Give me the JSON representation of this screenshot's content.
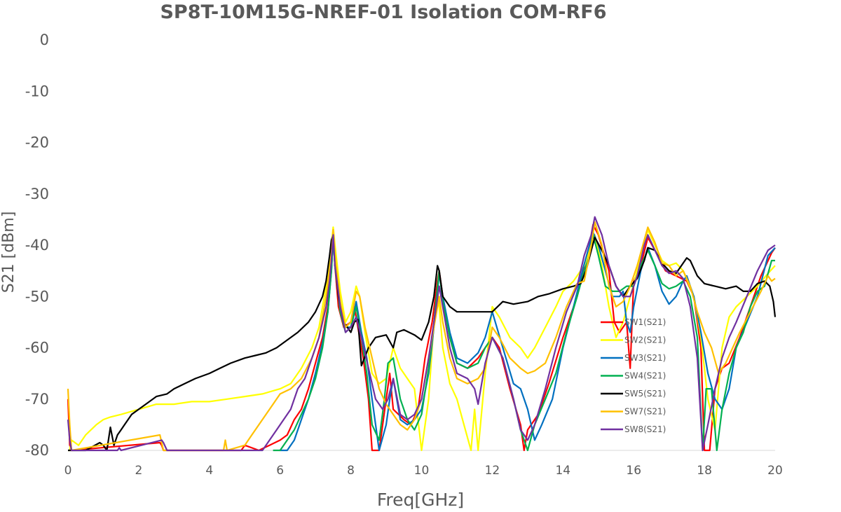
{
  "chart_data": {
    "type": "line",
    "title": "SP8T-10M15G-NREF-01  Isolation   COM-RF6",
    "xlabel": "Freq[GHz]",
    "ylabel": "S21  [dBm]",
    "xlim": [
      0,
      20
    ],
    "ylim": [
      -80,
      0
    ],
    "xticks": [
      0,
      2,
      4,
      6,
      8,
      10,
      12,
      14,
      16,
      18,
      20
    ],
    "yticks": [
      0,
      -10,
      -20,
      -30,
      -40,
      -50,
      -60,
      -70,
      -80
    ],
    "grid": false,
    "legend_position": "right-inside",
    "series": [
      {
        "name": "SW1(S21)",
        "color": "#ff0000",
        "x": [
          0,
          0.05,
          0.1,
          2.6,
          2.65,
          2.7,
          4.9,
          5.0,
          5.4,
          5.7,
          6.0,
          6.2,
          6.4,
          6.6,
          6.8,
          7.0,
          7.2,
          7.35,
          7.45,
          7.5,
          7.55,
          7.65,
          7.8,
          8.0,
          8.1,
          8.2,
          8.35,
          8.5,
          8.6,
          8.8,
          9.0,
          9.1,
          9.2,
          9.35,
          9.5,
          9.7,
          9.9,
          10.1,
          10.3,
          10.45,
          10.5,
          10.6,
          10.8,
          11.0,
          11.3,
          11.6,
          11.8,
          12.0,
          12.2,
          12.5,
          12.8,
          12.9,
          13.0,
          13.3,
          13.6,
          14.0,
          14.4,
          14.6,
          14.75,
          14.85,
          15.0,
          15.3,
          15.45,
          15.6,
          15.8,
          15.9,
          16.0,
          16.2,
          16.4,
          16.6,
          16.9,
          17.2,
          17.5,
          17.7,
          17.9,
          18.0,
          18.15,
          18.3,
          18.5,
          18.7,
          19.0,
          19.3,
          19.6,
          19.9,
          20.0
        ],
        "y": [
          -70,
          -79,
          -80,
          -78.5,
          -79,
          -80,
          -80,
          -79,
          -80,
          -79,
          -78,
          -77,
          -74,
          -72,
          -68,
          -63,
          -58,
          -52,
          -44,
          -38,
          -44,
          -52,
          -56,
          -55,
          -52,
          -56,
          -62,
          -70,
          -80,
          -80,
          -70,
          -65,
          -72,
          -73,
          -74,
          -75,
          -72,
          -62,
          -55,
          -47,
          -45,
          -50,
          -58,
          -63,
          -64,
          -62,
          -60,
          -58,
          -60,
          -68,
          -75,
          -80,
          -76,
          -73,
          -67,
          -58,
          -50,
          -44,
          -40,
          -36,
          -38,
          -45,
          -55,
          -57,
          -55,
          -64,
          -47,
          -44,
          -38.5,
          -41,
          -45,
          -46,
          -47,
          -50,
          -60,
          -80,
          -80,
          -68,
          -64,
          -63,
          -58,
          -52,
          -46,
          -41.5,
          -40.5
        ]
      },
      {
        "name": "SW2(S21)",
        "color": "#ffff00",
        "x": [
          0,
          0.05,
          0.1,
          0.3,
          0.5,
          0.8,
          1.0,
          1.2,
          1.5,
          2.0,
          2.5,
          3.0,
          3.5,
          4.0,
          4.5,
          5.0,
          5.5,
          6.0,
          6.3,
          6.6,
          6.9,
          7.1,
          7.3,
          7.45,
          7.5,
          7.55,
          7.7,
          7.85,
          8.0,
          8.15,
          8.25,
          8.4,
          8.6,
          8.8,
          9.0,
          9.2,
          9.4,
          9.6,
          9.8,
          10.0,
          10.2,
          10.35,
          10.45,
          10.5,
          10.6,
          10.8,
          11.0,
          11.2,
          11.4,
          11.5,
          11.6,
          11.8,
          12.0,
          12.2,
          12.5,
          12.8,
          13.0,
          13.2,
          13.5,
          13.8,
          14.0,
          14.3,
          14.6,
          14.8,
          14.9,
          15.1,
          15.3,
          15.5,
          15.7,
          15.9,
          16.1,
          16.3,
          16.4,
          16.6,
          16.8,
          17.0,
          17.2,
          17.4,
          17.7,
          17.9,
          18.1,
          18.3,
          18.5,
          18.7,
          18.9,
          19.2,
          19.5,
          19.8,
          20.0
        ],
        "y": [
          -80,
          -80,
          -78,
          -79,
          -77,
          -75,
          -74,
          -73.5,
          -73,
          -72,
          -71,
          -71,
          -70.5,
          -70.5,
          -70,
          -69.5,
          -69,
          -68,
          -67,
          -64,
          -60,
          -56,
          -48,
          -40,
          -36.5,
          -40,
          -49,
          -55,
          -53,
          -48,
          -50,
          -57,
          -65,
          -67,
          -66,
          -60,
          -64,
          -66,
          -68,
          -80,
          -70,
          -55,
          -50,
          -52,
          -60,
          -67,
          -70,
          -75,
          -80,
          -72,
          -80,
          -65,
          -52,
          -54,
          -58,
          -60,
          -62,
          -60,
          -56,
          -52,
          -49,
          -47,
          -44,
          -40,
          -38,
          -44,
          -52,
          -58,
          -55,
          -50,
          -45,
          -40,
          -37,
          -40,
          -43,
          -44,
          -43.5,
          -45,
          -50,
          -58,
          -70,
          -76,
          -60,
          -54,
          -52,
          -50,
          -48,
          -45.5,
          -44
        ]
      },
      {
        "name": "SW3(S21)",
        "color": "#0070c0",
        "x": [
          6.0,
          6.2,
          6.4,
          6.6,
          6.8,
          7.0,
          7.2,
          7.35,
          7.45,
          7.5,
          7.55,
          7.7,
          7.85,
          8.0,
          8.15,
          8.3,
          8.45,
          8.6,
          8.8,
          9.0,
          9.1,
          9.2,
          9.4,
          9.6,
          9.8,
          10.0,
          10.2,
          10.35,
          10.5,
          10.6,
          10.8,
          11.0,
          11.3,
          11.6,
          11.8,
          12.0,
          12.3,
          12.6,
          12.8,
          13.0,
          13.2,
          13.4,
          13.7,
          14.0,
          14.3,
          14.55,
          14.75,
          14.85,
          15.0,
          15.2,
          15.4,
          15.6,
          15.7,
          15.8,
          15.9,
          16.0,
          16.2,
          16.4,
          16.6,
          16.8,
          17.0,
          17.2,
          17.4,
          17.5,
          17.7,
          17.9,
          18.1,
          18.3,
          18.5,
          18.7,
          18.9,
          19.2,
          19.5,
          19.8,
          20.0
        ],
        "y": [
          -80,
          -80,
          -78,
          -74,
          -70,
          -65,
          -59,
          -53,
          -45,
          -38.5,
          -44,
          -52,
          -56,
          -56,
          -51,
          -57,
          -62,
          -70,
          -80,
          -75,
          -70,
          -66,
          -74,
          -75,
          -74,
          -72,
          -65,
          -56,
          -45.5,
          -50,
          -57,
          -62,
          -63,
          -61,
          -58,
          -53,
          -60,
          -67,
          -68,
          -72,
          -78,
          -75,
          -70,
          -60,
          -52,
          -45,
          -40,
          -37.5,
          -40,
          -45,
          -50,
          -50,
          -49,
          -55,
          -57,
          -52,
          -45,
          -40.5,
          -44,
          -49,
          -51.5,
          -50,
          -47,
          -46,
          -50,
          -57,
          -65,
          -70,
          -72,
          -68,
          -60,
          -55,
          -50,
          -42,
          -40.5
        ]
      },
      {
        "name": "SW4(S21)",
        "color": "#00b050",
        "x": [
          5.8,
          6.0,
          6.2,
          6.4,
          6.6,
          6.8,
          7.0,
          7.2,
          7.35,
          7.45,
          7.5,
          7.55,
          7.7,
          7.85,
          8.0,
          8.15,
          8.3,
          8.45,
          8.6,
          8.8,
          8.95,
          9.05,
          9.2,
          9.4,
          9.6,
          9.8,
          10.0,
          10.2,
          10.35,
          10.5,
          10.6,
          10.8,
          11.0,
          11.3,
          11.6,
          11.8,
          12.0,
          12.3,
          12.6,
          12.8,
          13.0,
          13.2,
          13.5,
          13.8,
          14.1,
          14.4,
          14.6,
          14.75,
          14.85,
          15.0,
          15.2,
          15.4,
          15.6,
          15.8,
          16.0,
          16.2,
          16.4,
          16.6,
          16.8,
          17.0,
          17.2,
          17.4,
          17.6,
          17.8,
          17.95,
          18.05,
          18.2,
          18.35,
          18.5,
          18.7,
          18.9,
          19.1,
          19.3,
          19.5,
          19.7,
          19.9,
          20.0
        ],
        "y": [
          -80,
          -80,
          -78,
          -76,
          -73,
          -70,
          -66,
          -60,
          -53,
          -45,
          -38,
          -44,
          -53,
          -57,
          -56,
          -52,
          -58,
          -65,
          -75,
          -78,
          -70,
          -63,
          -62,
          -70,
          -74,
          -76,
          -73,
          -64,
          -55,
          -45,
          -51,
          -58,
          -63,
          -64,
          -63,
          -60,
          -58,
          -62,
          -70,
          -76,
          -80,
          -75,
          -70,
          -65,
          -57,
          -50,
          -45,
          -42,
          -38,
          -42,
          -48,
          -49,
          -49,
          -48,
          -48,
          -44,
          -41,
          -44,
          -47.5,
          -48.5,
          -48,
          -47,
          -50,
          -58,
          -80,
          -68,
          -68,
          -80,
          -72,
          -65,
          -60,
          -57,
          -52,
          -49,
          -48,
          -43,
          -43
        ]
      },
      {
        "name": "SW5(S21)",
        "color": "#000000",
        "x": [
          0,
          0.05,
          0.1,
          0.5,
          0.9,
          1.0,
          1.1,
          1.2,
          1.3,
          1.4,
          1.5,
          1.6,
          1.8,
          2.0,
          2.2,
          2.5,
          2.8,
          3.0,
          3.3,
          3.6,
          4.0,
          4.3,
          4.6,
          5.0,
          5.3,
          5.6,
          5.9,
          6.2,
          6.5,
          6.8,
          7.0,
          7.2,
          7.3,
          7.4,
          7.45,
          7.5,
          7.55,
          7.65,
          7.8,
          8.0,
          8.1,
          8.2,
          8.3,
          8.5,
          8.7,
          9.0,
          9.2,
          9.3,
          9.5,
          9.8,
          10.0,
          10.2,
          10.35,
          10.45,
          10.5,
          10.6,
          10.8,
          11.0,
          11.3,
          11.7,
          12.0,
          12.3,
          12.6,
          13.0,
          13.3,
          13.6,
          14.0,
          14.3,
          14.5,
          14.65,
          14.8,
          14.9,
          15.1,
          15.3,
          15.5,
          15.7,
          15.9,
          16.1,
          16.3,
          16.4,
          16.6,
          16.8,
          17.0,
          17.2,
          17.4,
          17.5,
          17.6,
          17.8,
          18.0,
          18.3,
          18.6,
          18.9,
          19.1,
          19.3,
          19.5,
          19.7,
          19.85,
          19.95,
          20.0
        ],
        "y": [
          -80,
          -80,
          -80,
          -80,
          -78.5,
          -79,
          -80,
          -75.5,
          -79,
          -77,
          -76,
          -75,
          -73,
          -72,
          -71,
          -69.5,
          -69,
          -68,
          -67,
          -66,
          -65,
          -64,
          -63,
          -62,
          -61.5,
          -61,
          -60,
          -58.5,
          -57,
          -55,
          -53,
          -50,
          -47,
          -42,
          -39,
          -38,
          -43,
          -50,
          -55,
          -57,
          -55,
          -54.5,
          -63.5,
          -60,
          -58,
          -57.5,
          -60,
          -57,
          -56.5,
          -57.5,
          -58.5,
          -55,
          -50,
          -44,
          -45,
          -50,
          -52,
          -53,
          -53,
          -53,
          -53,
          -51,
          -51.5,
          -51,
          -50,
          -49.5,
          -48.5,
          -48,
          -47.5,
          -45,
          -41,
          -38.5,
          -41,
          -44,
          -48,
          -50,
          -48,
          -46.5,
          -43,
          -40.5,
          -41,
          -43.5,
          -45,
          -45.5,
          -43.5,
          -42.5,
          -43,
          -46,
          -47.5,
          -48,
          -48.5,
          -48,
          -49,
          -49,
          -47.5,
          -47,
          -48,
          -51,
          -54
        ]
      },
      {
        "name": "SW7(S21)",
        "color": "#ffc000",
        "x": [
          0,
          0.05,
          0.1,
          2.6,
          2.65,
          2.7,
          4.4,
          4.45,
          4.5,
          5.0,
          5.2,
          5.4,
          5.6,
          5.8,
          6.0,
          6.3,
          6.6,
          6.9,
          7.1,
          7.3,
          7.45,
          7.5,
          7.55,
          7.7,
          7.85,
          8.0,
          8.15,
          8.25,
          8.4,
          8.6,
          8.8,
          9.0,
          9.2,
          9.4,
          9.6,
          9.8,
          10.0,
          10.2,
          10.35,
          10.5,
          10.6,
          10.8,
          11.0,
          11.3,
          11.6,
          11.8,
          12.0,
          12.2,
          12.5,
          12.8,
          13.0,
          13.2,
          13.5,
          13.8,
          14.1,
          14.4,
          14.6,
          14.8,
          14.9,
          15.1,
          15.3,
          15.5,
          15.7,
          15.9,
          16.1,
          16.3,
          16.4,
          16.6,
          16.8,
          17.0,
          17.2,
          17.4,
          17.6,
          17.8,
          18.0,
          18.2,
          18.4,
          18.6,
          18.8,
          19.0,
          19.3,
          19.6,
          19.8,
          19.9,
          20.0
        ],
        "y": [
          -68,
          -75,
          -80,
          -77,
          -78.5,
          -80,
          -80,
          -78,
          -80,
          -79,
          -77,
          -75,
          -73,
          -71,
          -69,
          -68,
          -66,
          -62,
          -58,
          -50,
          -42,
          -37,
          -42,
          -51,
          -56,
          -55,
          -49,
          -50,
          -56,
          -62,
          -68,
          -71,
          -73,
          -75,
          -76,
          -74,
          -70,
          -62,
          -56,
          -50,
          -55,
          -62,
          -66,
          -67,
          -66,
          -64,
          -56,
          -58,
          -62,
          -64,
          -65,
          -64.5,
          -63,
          -58,
          -52,
          -47.5,
          -47,
          -40,
          -35.5,
          -40,
          -48,
          -52,
          -51,
          -48,
          -44,
          -39,
          -36.5,
          -39.5,
          -43.5,
          -44,
          -46,
          -45,
          -48,
          -53,
          -57,
          -60,
          -65,
          -63,
          -60,
          -57,
          -53,
          -49,
          -46,
          -47,
          -46.5
        ]
      },
      {
        "name": "SW8(S21)",
        "color": "#7030a0",
        "x": [
          0,
          0.05,
          0.1,
          1.4,
          1.45,
          1.5,
          2.65,
          2.7,
          2.8,
          5.5,
          5.7,
          5.9,
          6.1,
          6.3,
          6.5,
          6.7,
          6.9,
          7.1,
          7.3,
          7.4,
          7.45,
          7.5,
          7.55,
          7.7,
          7.85,
          8.0,
          8.15,
          8.3,
          8.5,
          8.7,
          8.9,
          9.05,
          9.2,
          9.4,
          9.6,
          9.8,
          10.0,
          10.2,
          10.35,
          10.5,
          10.6,
          10.8,
          11.0,
          11.3,
          11.5,
          11.6,
          11.8,
          12.0,
          12.3,
          12.6,
          12.8,
          13.0,
          13.2,
          13.5,
          13.8,
          14.1,
          14.4,
          14.6,
          14.8,
          14.9,
          15.1,
          15.3,
          15.5,
          15.7,
          15.9,
          16.1,
          16.3,
          16.4,
          16.6,
          16.8,
          17.0,
          17.2,
          17.4,
          17.6,
          17.8,
          17.95,
          18.1,
          18.3,
          18.5,
          18.7,
          18.9,
          19.2,
          19.5,
          19.8,
          20.0
        ],
        "y": [
          -74,
          -78,
          -80,
          -80,
          -79.5,
          -80,
          -78,
          -78.5,
          -80,
          -80,
          -78,
          -76,
          -74,
          -72,
          -68,
          -66,
          -62,
          -58,
          -52,
          -47,
          -43,
          -38,
          -44,
          -52,
          -57,
          -56,
          -54,
          -58,
          -64,
          -70,
          -72,
          -70,
          -66,
          -73,
          -74,
          -73,
          -70,
          -62,
          -55,
          -48,
          -52,
          -60,
          -65,
          -66,
          -68,
          -71,
          -63,
          -58,
          -62,
          -70,
          -76,
          -78,
          -75,
          -68,
          -60,
          -53,
          -48,
          -42,
          -38,
          -34.5,
          -38,
          -44,
          -48,
          -50,
          -50,
          -46,
          -40,
          -38,
          -41,
          -44,
          -45.5,
          -45,
          -46.5,
          -52,
          -62,
          -80,
          -75,
          -68,
          -62,
          -58,
          -55,
          -50,
          -45,
          -41,
          -40
        ]
      }
    ]
  }
}
